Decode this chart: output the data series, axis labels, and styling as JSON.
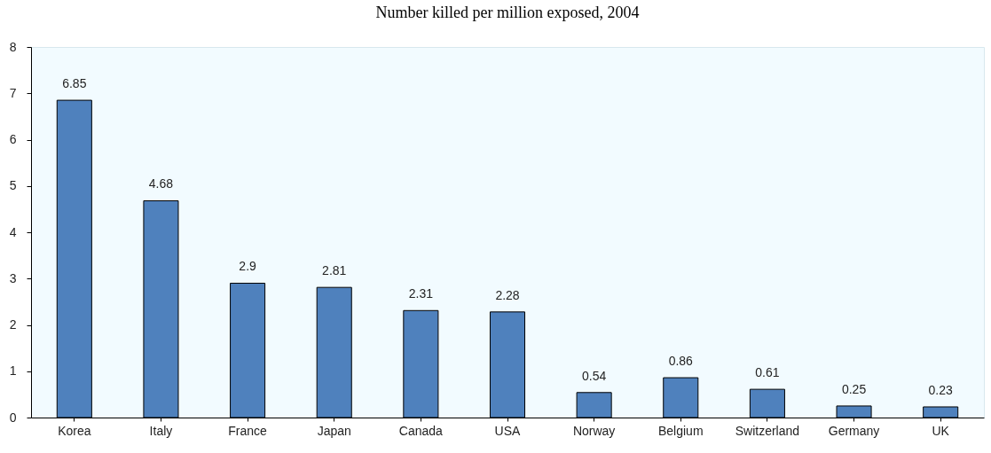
{
  "chart_data": {
    "type": "bar",
    "title": "Number killed per million exposed, 2004",
    "categories": [
      "Korea",
      "Italy",
      "France",
      "Japan",
      "Canada",
      "USA",
      "Norway",
      "Belgium",
      "Switzerland",
      "Germany",
      "UK"
    ],
    "values": [
      6.85,
      4.68,
      2.9,
      2.81,
      2.31,
      2.28,
      0.54,
      0.86,
      0.61,
      0.25,
      0.23
    ],
    "color": "#4f81bd",
    "ylim": [
      0,
      8
    ],
    "yticks": [
      0,
      1,
      2,
      3,
      4,
      5,
      6,
      7,
      8
    ],
    "data_labels": true
  }
}
